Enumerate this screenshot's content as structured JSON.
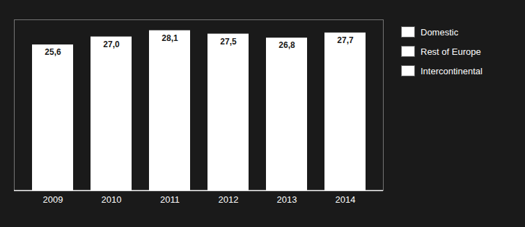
{
  "chart_data": {
    "type": "bar",
    "categories": [
      "2009",
      "2010",
      "2011",
      "2012",
      "2013",
      "2014"
    ],
    "values": [
      25.6,
      27.0,
      28.1,
      27.5,
      26.8,
      27.7
    ],
    "value_labels": [
      "25,6",
      "27,0",
      "28,1",
      "27,5",
      "26,8",
      "27,7"
    ],
    "data_labels": true,
    "color": "#ffffff",
    "ylim": [
      0,
      30
    ],
    "grid": false,
    "tick_labels": "x",
    "legend": "right",
    "legend_labels": [
      "Domestic",
      "Rest of Europe",
      "Intercontinental"
    ]
  }
}
